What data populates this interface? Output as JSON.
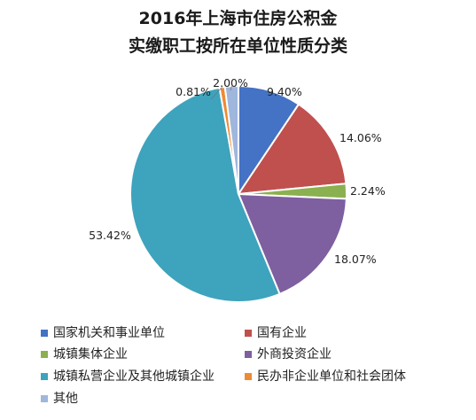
{
  "chart_data": {
    "type": "pie",
    "title": "2016年上海市住房公积金",
    "subtitle": "实缴职工按所在单位性质分类",
    "start_angle_deg": 0,
    "direction": "clockwise",
    "legend_position": "bottom",
    "slices": [
      {
        "name": "国家机关和事业单位",
        "value": 9.4,
        "label": "9.40%",
        "color": "#4472c4"
      },
      {
        "name": "国有企业",
        "value": 14.06,
        "label": "14.06%",
        "color": "#c0504d"
      },
      {
        "name": "城镇集体企业",
        "value": 2.24,
        "label": "2.24%",
        "color": "#8bb04f"
      },
      {
        "name": "外商投资企业",
        "value": 18.07,
        "label": "18.07%",
        "color": "#7e5fa0"
      },
      {
        "name": "城镇私营企业及其他城镇企业",
        "value": 53.42,
        "label": "53.42%",
        "color": "#3ea3bd"
      },
      {
        "name": "民办非企业单位和社会团体",
        "value": 0.81,
        "label": "0.81%",
        "color": "#ee8a34"
      },
      {
        "name": "其他",
        "value": 2.0,
        "label": "2.00%",
        "color": "#9fb6dd"
      }
    ]
  }
}
